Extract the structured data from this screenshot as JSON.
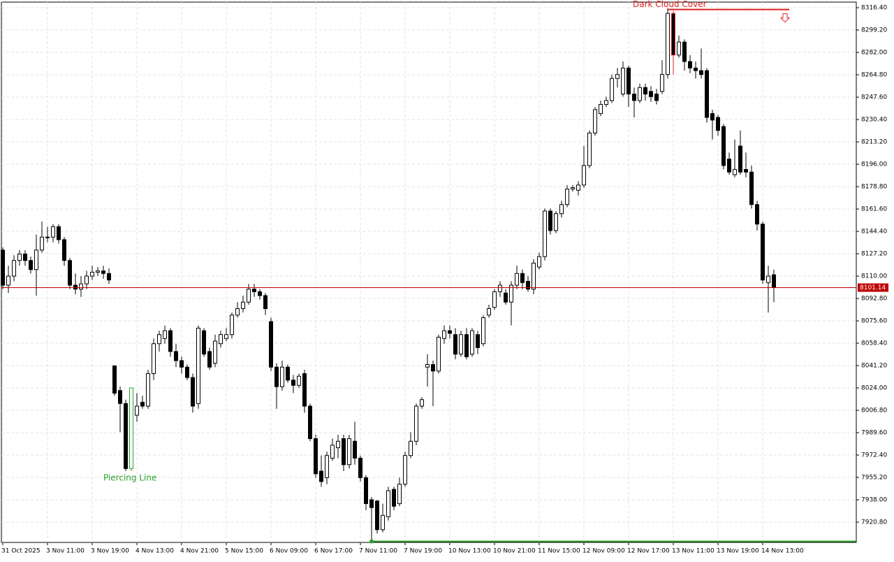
{
  "chart_data": {
    "type": "candlestick",
    "xlim": [
      -0.25,
      152.75
    ],
    "ylim": [
      7905.2,
      8320.7
    ],
    "grid": true,
    "up_color": "#ffffff",
    "down_color": "#000000",
    "wick_color": "#000000",
    "xticks": [
      {
        "value": 0,
        "label": "31 Oct 2025"
      },
      {
        "value": 8,
        "label": "3 Nov 11:00"
      },
      {
        "value": 16,
        "label": "3 Nov 19:00"
      },
      {
        "value": 24,
        "label": "4 Nov 13:00"
      },
      {
        "value": 32,
        "label": "4 Nov 21:00"
      },
      {
        "value": 40,
        "label": "5 Nov 15:00"
      },
      {
        "value": 48,
        "label": "6 Nov 09:00"
      },
      {
        "value": 56,
        "label": "6 Nov 17:00"
      },
      {
        "value": 64,
        "label": "7 Nov 11:00"
      },
      {
        "value": 72,
        "label": "7 Nov 19:00"
      },
      {
        "value": 80,
        "label": "10 Nov 13:00"
      },
      {
        "value": 88,
        "label": "10 Nov 21:00"
      },
      {
        "value": 96,
        "label": "11 Nov 15:00"
      },
      {
        "value": 104,
        "label": "12 Nov 09:00"
      },
      {
        "value": 112,
        "label": "12 Nov 17:00"
      },
      {
        "value": 120,
        "label": "13 Nov 11:00"
      },
      {
        "value": 128,
        "label": "13 Nov 19:00"
      },
      {
        "value": 136,
        "label": "14 Nov 13:00"
      }
    ],
    "yticks": [
      {
        "value": 8316.4,
        "label": "8316.40"
      },
      {
        "value": 8299.2,
        "label": "8299.20"
      },
      {
        "value": 8282,
        "label": "8282.00"
      },
      {
        "value": 8264.8,
        "label": "8264.80"
      },
      {
        "value": 8247.6,
        "label": "8247.60"
      },
      {
        "value": 8230.4,
        "label": "8230.40"
      },
      {
        "value": 8213.2,
        "label": "8213.20"
      },
      {
        "value": 8196,
        "label": "8196.00"
      },
      {
        "value": 8178.8,
        "label": "8178.80"
      },
      {
        "value": 8161.6,
        "label": "8161.60"
      },
      {
        "value": 8144.4,
        "label": "8144.40"
      },
      {
        "value": 8127.2,
        "label": "8127.20"
      },
      {
        "value": 8110,
        "label": "8110.00"
      },
      {
        "value": 8092.8,
        "label": "8092.80"
      },
      {
        "value": 8075.6,
        "label": "8075.60"
      },
      {
        "value": 8058.4,
        "label": "8058.40"
      },
      {
        "value": 8041.2,
        "label": "8041.20"
      },
      {
        "value": 8024,
        "label": "8024.00"
      },
      {
        "value": 8006.8,
        "label": "8006.80"
      },
      {
        "value": 7989.6,
        "label": "7989.60"
      },
      {
        "value": 7972.4,
        "label": "7972.40"
      },
      {
        "value": 7955.2,
        "label": "7955.20"
      },
      {
        "value": 7938,
        "label": "7938.00"
      },
      {
        "value": 7920.8,
        "label": "7920.80"
      }
    ],
    "open": [
      8130,
      8103,
      8110,
      8122,
      8127,
      8122,
      8115,
      8130,
      8140,
      8140,
      8148,
      8138,
      8122,
      8103,
      8100,
      8104,
      8110,
      8113,
      8114,
      8112,
      8041,
      8022,
      8012,
      7962,
      8003,
      8013,
      8010,
      8035,
      8058,
      8062,
      8068,
      8052,
      8045,
      8040,
      8032,
      8012,
      8068,
      8052,
      8043,
      8058,
      8062,
      8065,
      8080,
      8085,
      8090,
      8100,
      8098,
      8095,
      8075,
      8040,
      8025,
      8040,
      8030,
      8026,
      8035,
      8010,
      7985,
      7960,
      7955,
      7970,
      7978,
      7985,
      7965,
      7983,
      7970,
      7955,
      7938,
      7937,
      7915,
      7925,
      7946,
      7935,
      7950,
      7972,
      7983,
      8010,
      8040,
      8042,
      8037,
      8062,
      8068,
      8065,
      8050,
      8065,
      8050,
      8065,
      8058,
      8080,
      8086,
      8098,
      8097,
      8090,
      8103,
      8112,
      8106,
      8100,
      8117,
      8125,
      8160,
      8145,
      8158,
      8165,
      8177,
      8176,
      8180,
      8195,
      8220,
      8235,
      8242,
      8245,
      8262,
      8250,
      8270,
      8250,
      8245,
      8255,
      8252,
      8250,
      8252,
      8265,
      8312,
      8280,
      8290,
      8275,
      8270,
      8268,
      8268,
      8235,
      8232,
      8225,
      8200,
      8188,
      8210,
      8192,
      8190,
      8165,
      8150,
      8105,
      8111
    ],
    "high": [
      8132,
      8118,
      8126,
      8130,
      8130,
      8125,
      8142,
      8152,
      8148,
      8150,
      8150,
      8140,
      8124,
      8112,
      8110,
      8114,
      8118,
      8117,
      8118,
      8116,
      8041,
      8025,
      8015,
      8024,
      8020,
      8018,
      8038,
      8062,
      8068,
      8072,
      8070,
      8058,
      8048,
      8042,
      8035,
      8072,
      8070,
      8055,
      8065,
      8068,
      8070,
      8082,
      8090,
      8095,
      8104,
      8104,
      8100,
      8097,
      8078,
      8043,
      8045,
      8042,
      8034,
      8035,
      8038,
      8012,
      7988,
      7972,
      7975,
      7985,
      7988,
      7988,
      7988,
      7998,
      7972,
      7957,
      7940,
      7938,
      7935,
      7948,
      7948,
      7955,
      7975,
      7990,
      8012,
      8017,
      8050,
      8045,
      8065,
      8072,
      8072,
      8070,
      8068,
      8070,
      8070,
      8068,
      8080,
      8088,
      8100,
      8106,
      8100,
      8106,
      8118,
      8115,
      8110,
      8123,
      8128,
      8162,
      8162,
      8160,
      8168,
      8180,
      8180,
      8183,
      8210,
      8222,
      8240,
      8245,
      8248,
      8265,
      8270,
      8275,
      8272,
      8255,
      8258,
      8258,
      8256,
      8254,
      8276,
      8316,
      8314,
      8295,
      8292,
      8280,
      8275,
      8285,
      8270,
      8238,
      8234,
      8227,
      8205,
      8215,
      8222,
      8205,
      8195,
      8168,
      8152,
      8118,
      8115
    ],
    "low": [
      8100,
      8097,
      8106,
      8118,
      8118,
      8112,
      8095,
      8128,
      8136,
      8136,
      8135,
      8118,
      8100,
      8096,
      8094,
      8100,
      8107,
      8110,
      8108,
      8104,
      8018,
      7990,
      7960,
      7960,
      7998,
      8008,
      8008,
      8030,
      8052,
      8058,
      8048,
      8040,
      8035,
      8030,
      8005,
      8008,
      8048,
      8038,
      8040,
      8055,
      8060,
      8062,
      8078,
      8082,
      8088,
      8094,
      8092,
      8080,
      8037,
      8008,
      8022,
      8028,
      8020,
      8024,
      8005,
      7983,
      7955,
      7948,
      7950,
      7968,
      7970,
      7960,
      7962,
      7965,
      7952,
      7930,
      7906,
      7912,
      7913,
      7922,
      7930,
      7933,
      7948,
      7970,
      7980,
      8008,
      8025,
      8010,
      8035,
      8058,
      8062,
      8046,
      8048,
      8046,
      8048,
      8050,
      8056,
      8078,
      8084,
      8094,
      8088,
      8072,
      8100,
      8100,
      8098,
      8096,
      8115,
      8122,
      8142,
      8143,
      8155,
      8163,
      8175,
      8172,
      8178,
      8193,
      8218,
      8233,
      8240,
      8243,
      8255,
      8248,
      8240,
      8232,
      8243,
      8245,
      8244,
      8242,
      8250,
      8262,
      8265,
      8278,
      8268,
      8266,
      8262,
      8262,
      8228,
      8215,
      8218,
      8192,
      8188,
      8186,
      8188,
      8186,
      8162,
      8145,
      8104,
      8082,
      8090
    ],
    "close": [
      8103,
      8110,
      8122,
      8127,
      8122,
      8115,
      8130,
      8140,
      8140,
      8148,
      8138,
      8122,
      8103,
      8100,
      8104,
      8110,
      8113,
      8114,
      8112,
      8107,
      8020,
      8012,
      7962,
      8024,
      8010,
      8010,
      8035,
      8058,
      8065,
      8068,
      8052,
      8045,
      8040,
      8032,
      8010,
      8070,
      8050,
      8040,
      8060,
      8065,
      8065,
      8080,
      8085,
      8090,
      8100,
      8098,
      8095,
      8085,
      8040,
      8025,
      8040,
      8030,
      8026,
      8033,
      8010,
      7985,
      7958,
      7952,
      7972,
      7980,
      7983,
      7965,
      7985,
      7970,
      7955,
      7935,
      7932,
      7915,
      7926,
      7945,
      7933,
      7950,
      7972,
      7983,
      8010,
      8015,
      8042,
      8037,
      8063,
      8068,
      8066,
      8050,
      8065,
      8048,
      8068,
      8055,
      8078,
      8085,
      8098,
      8103,
      8090,
      8103,
      8112,
      8105,
      8100,
      8120,
      8125,
      8160,
      8145,
      8158,
      8165,
      8177,
      8178,
      8180,
      8195,
      8220,
      8238,
      8242,
      8245,
      8262,
      8265,
      8270,
      8250,
      8245,
      8255,
      8250,
      8248,
      8245,
      8265,
      8312,
      8280,
      8290,
      8275,
      8270,
      8268,
      8265,
      8232,
      8230,
      8222,
      8195,
      8190,
      8192,
      8190,
      8190,
      8165,
      8150,
      8107,
      8110,
      8101.14
    ],
    "current_price": 8101.14,
    "current_price_color": "#c00000",
    "patterns": [
      {
        "name": "Piercing Line",
        "index": 23,
        "color": "#2ca02c"
      },
      {
        "name": "Dark Cloud Cover",
        "index": 120,
        "level": 8315,
        "color": "#e02020"
      }
    ],
    "support": {
      "value": 7906,
      "start": 66,
      "color": "#2ca02c"
    }
  }
}
